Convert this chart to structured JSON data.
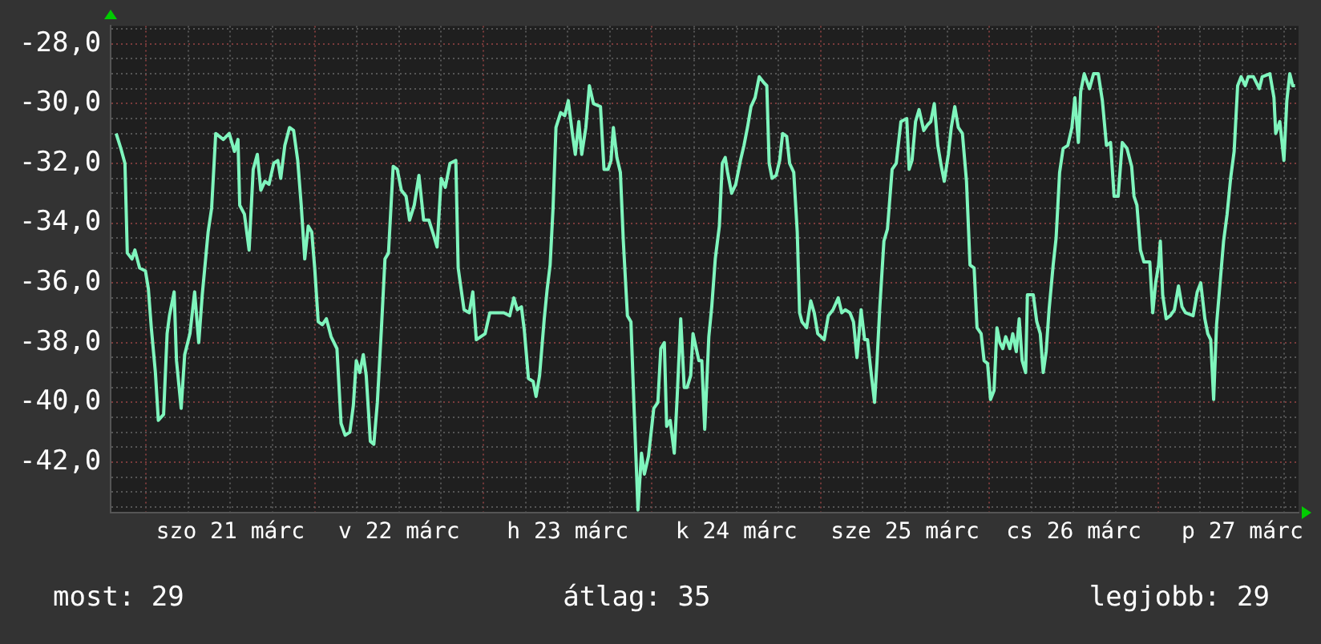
{
  "chart_data": {
    "type": "line",
    "grid": true,
    "x": [
      "--03-20T19:45",
      "--03-20T20:25",
      "--03-20T21:00",
      "--03-20T21:20",
      "--03-20T22:00",
      "--03-20T22:25",
      "--03-20T23:05",
      "--03-20T23:55",
      "--03-21T00:20",
      "--03-21T00:45",
      "--03-21T01:20",
      "--03-21T01:45",
      "--03-21T02:30",
      "--03-21T03:00",
      "--03-21T03:20",
      "--03-21T04:00",
      "--03-21T04:20",
      "--03-21T05:00",
      "--03-21T05:30",
      "--03-21T06:15",
      "--03-21T06:55",
      "--03-21T07:30",
      "--03-21T08:00",
      "--03-21T08:50",
      "--03-21T09:20",
      "--03-21T09:55",
      "--03-21T11:00",
      "--03-21T11:50",
      "--03-21T12:35",
      "--03-21T13:05",
      "--03-21T13:20",
      "--03-21T14:00",
      "--03-21T14:40",
      "--03-21T15:15",
      "--03-21T15:50",
      "--03-21T16:20",
      "--03-21T16:55",
      "--03-21T17:30",
      "--03-21T18:10",
      "--03-21T18:45",
      "--03-21T19:10",
      "--03-21T19:45",
      "--03-21T20:25",
      "--03-21T21:00",
      "--03-21T21:35",
      "--03-21T22:05",
      "--03-21T22:35",
      "--03-21T23:05",
      "--03-21T23:35",
      "--03-22T00:00",
      "--03-22T00:30",
      "--03-22T01:05",
      "--03-22T01:40",
      "--03-22T02:20",
      "--03-22T03:10",
      "--03-22T03:45",
      "--03-22T04:20",
      "--03-22T05:00",
      "--03-22T05:30",
      "--03-22T05:55",
      "--03-22T06:25",
      "--03-22T06:55",
      "--03-22T07:20",
      "--03-22T07:55",
      "--03-22T08:25",
      "--03-22T08:55",
      "--03-22T09:30",
      "--03-22T10:00",
      "--03-22T10:30",
      "--03-22T11:10",
      "--03-22T11:45",
      "--03-22T12:20",
      "--03-22T13:00",
      "--03-22T13:30",
      "--03-22T14:10",
      "--03-22T14:50",
      "--03-22T15:30",
      "--03-22T16:15",
      "--03-22T16:55",
      "--03-22T17:25",
      "--03-22T18:00",
      "--03-22T18:35",
      "--03-22T19:15",
      "--03-22T20:05",
      "--03-22T20:25",
      "--03-22T21:15",
      "--03-22T22:00",
      "--03-22T22:30",
      "--03-22T23:00",
      "--03-23T00:15",
      "--03-23T00:55",
      "--03-23T02:55",
      "--03-23T03:45",
      "--03-23T04:20",
      "--03-23T04:50",
      "--03-23T05:25",
      "--03-23T05:50",
      "--03-23T06:25",
      "--03-23T07:05",
      "--03-23T07:30",
      "--03-23T08:00",
      "--03-23T08:40",
      "--03-23T09:05",
      "--03-23T09:30",
      "--03-23T09:55",
      "--03-23T10:20",
      "--03-23T11:00",
      "--03-23T11:35",
      "--03-23T12:05",
      "--03-23T12:40",
      "--03-23T13:05",
      "--03-23T13:35",
      "--03-23T14:00",
      "--03-23T14:35",
      "--03-23T15:05",
      "--03-23T15:40",
      "--03-23T16:40",
      "--03-23T17:10",
      "--03-23T17:45",
      "--03-23T18:10",
      "--03-23T18:30",
      "--03-23T19:00",
      "--03-23T19:30",
      "--03-23T19:55",
      "--03-23T20:30",
      "--03-23T21:00",
      "--03-23T21:25",
      "--03-23T22:00",
      "--03-23T22:30",
      "--03-23T22:55",
      "--03-23T23:30",
      "--03-24T00:15",
      "--03-24T00:50",
      "--03-24T01:15",
      "--03-24T01:45",
      "--03-24T02:05",
      "--03-24T02:35",
      "--03-24T03:10",
      "--03-24T03:35",
      "--03-24T04:05",
      "--03-24T04:35",
      "--03-24T05:00",
      "--03-24T05:30",
      "--03-24T05:50",
      "--03-24T06:40",
      "--03-24T07:05",
      "--03-24T07:30",
      "--03-24T08:05",
      "--03-24T08:30",
      "--03-24T09:00",
      "--03-24T09:35",
      "--03-24T10:00",
      "--03-24T10:25",
      "--03-24T10:45",
      "--03-24T11:20",
      "--03-24T11:55",
      "--03-24T12:35",
      "--03-24T13:05",
      "--03-24T13:35",
      "--03-24T14:05",
      "--03-24T14:40",
      "--03-24T15:15",
      "--03-24T15:55",
      "--03-24T16:20",
      "--03-24T16:40",
      "--03-24T17:05",
      "--03-24T17:40",
      "--03-24T18:10",
      "--03-24T18:35",
      "--03-24T19:10",
      "--03-24T19:35",
      "--03-24T20:10",
      "--03-24T20:40",
      "--03-24T21:00",
      "--03-24T21:20",
      "--03-24T22:00",
      "--03-24T22:35",
      "--03-24T23:05",
      "--03-24T23:35",
      "--03-25T00:30",
      "--03-25T01:05",
      "--03-25T01:45",
      "--03-25T02:30",
      "--03-25T03:00",
      "--03-25T03:30",
      "--03-25T04:10",
      "--03-25T04:40",
      "--03-25T05:10",
      "--03-25T05:45",
      "--03-25T06:15",
      "--03-25T06:40",
      "--03-25T07:10",
      "--03-25T07:40",
      "--03-25T08:00",
      "--03-25T08:25",
      "--03-25T09:00",
      "--03-25T09:30",
      "--03-25T10:10",
      "--03-25T10:45",
      "--03-25T11:25",
      "--03-25T12:15",
      "--03-25T12:35",
      "--03-25T13:00",
      "--03-25T13:30",
      "--03-25T14:00",
      "--03-25T14:40",
      "--03-25T15:15",
      "--03-25T15:40",
      "--03-25T16:10",
      "--03-25T16:40",
      "--03-25T17:10",
      "--03-25T17:35",
      "--03-25T18:10",
      "--03-25T18:35",
      "--03-25T19:05",
      "--03-25T19:35",
      "--03-25T20:10",
      "--03-25T20:45",
      "--03-25T21:15",
      "--03-25T21:50",
      "--03-25T22:15",
      "--03-25T22:50",
      "--03-25T23:15",
      "--03-25T23:45",
      "--03-26T00:10",
      "--03-26T00:40",
      "--03-26T01:05",
      "--03-26T01:30",
      "--03-26T01:55",
      "--03-26T02:20",
      "--03-26T02:55",
      "--03-26T03:20",
      "--03-26T03:50",
      "--03-26T04:15",
      "--03-26T04:40",
      "--03-26T05:10",
      "--03-26T05:25",
      "--03-26T06:15",
      "--03-26T06:45",
      "--03-26T07:15",
      "--03-26T07:40",
      "--03-26T08:05",
      "--03-26T08:30",
      "--03-26T09:05",
      "--03-26T09:30",
      "--03-26T10:00",
      "--03-26T10:30",
      "--03-26T11:10",
      "--03-26T11:45",
      "--03-26T12:10",
      "--03-26T12:40",
      "--03-26T13:00",
      "--03-26T13:30",
      "--03-26T14:15",
      "--03-26T14:50",
      "--03-26T15:30",
      "--03-26T16:05",
      "--03-26T16:40",
      "--03-26T17:15",
      "--03-26T17:45",
      "--03-26T18:20",
      "--03-26T18:55",
      "--03-26T19:35",
      "--03-26T20:15",
      "--03-26T20:35",
      "--03-26T21:00",
      "--03-26T21:30",
      "--03-26T22:00",
      "--03-26T22:50",
      "--03-26T23:15",
      "--03-26T23:40",
      "--03-27T00:05",
      "--03-27T00:20",
      "--03-27T00:40",
      "--03-27T01:10",
      "--03-27T01:45",
      "--03-27T02:20",
      "--03-27T02:55",
      "--03-27T03:25",
      "--03-27T03:55",
      "--03-27T05:00",
      "--03-27T05:35",
      "--03-27T06:05",
      "--03-27T06:40",
      "--03-27T07:05",
      "--03-27T07:30",
      "--03-27T07:55",
      "--03-27T08:20",
      "--03-27T08:50",
      "--03-27T09:20",
      "--03-27T09:50",
      "--03-27T10:20",
      "--03-27T10:50",
      "--03-27T11:20",
      "--03-27T11:50",
      "--03-27T12:25",
      "--03-27T12:50",
      "--03-27T13:35",
      "--03-27T14:25",
      "--03-27T14:50",
      "--03-27T15:55",
      "--03-27T16:30",
      "--03-27T16:45",
      "--03-27T17:20",
      "--03-27T17:55",
      "--03-27T18:20",
      "--03-27T18:45",
      "--03-27T19:10",
      "--03-27T19:30"
    ],
    "series": [
      {
        "color": "#7ff5bd",
        "values": [
          -31.0,
          -31.5,
          -32.0,
          -35.0,
          -35.2,
          -34.9,
          -35.5,
          -35.6,
          -36.2,
          -37.5,
          -39.0,
          -40.6,
          -40.4,
          -37.7,
          -37.1,
          -36.3,
          -38.6,
          -40.2,
          -38.4,
          -37.7,
          -36.3,
          -38.0,
          -36.4,
          -34.3,
          -33.5,
          -31.0,
          -31.2,
          -31.0,
          -31.6,
          -31.2,
          -33.4,
          -33.7,
          -34.9,
          -32.2,
          -31.7,
          -32.9,
          -32.6,
          -32.7,
          -32.0,
          -31.9,
          -32.5,
          -31.4,
          -30.8,
          -30.9,
          -31.9,
          -33.4,
          -35.2,
          -34.1,
          -34.3,
          -35.5,
          -37.3,
          -37.4,
          -37.2,
          -37.8,
          -38.2,
          -40.7,
          -41.1,
          -41.0,
          -40.1,
          -38.6,
          -39.0,
          -38.4,
          -39.1,
          -41.3,
          -41.4,
          -40.0,
          -37.5,
          -35.2,
          -35.0,
          -32.1,
          -32.2,
          -32.9,
          -33.1,
          -33.9,
          -33.4,
          -32.4,
          -33.9,
          -33.9,
          -34.4,
          -34.8,
          -32.5,
          -32.8,
          -32.0,
          -31.9,
          -35.5,
          -36.9,
          -37.0,
          -36.3,
          -37.9,
          -37.7,
          -37.0,
          -37.0,
          -37.1,
          -36.5,
          -36.9,
          -36.8,
          -37.6,
          -39.2,
          -39.3,
          -39.8,
          -39.1,
          -37.2,
          -36.2,
          -35.4,
          -33.5,
          -30.8,
          -30.3,
          -30.4,
          -29.9,
          -31.0,
          -31.7,
          -30.6,
          -31.7,
          -30.8,
          -29.4,
          -30.0,
          -30.1,
          -32.2,
          -32.2,
          -31.9,
          -30.8,
          -31.8,
          -32.3,
          -34.6,
          -37.1,
          -37.3,
          -40.0,
          -43.6,
          -41.7,
          -42.4,
          -41.8,
          -40.2,
          -40.0,
          -38.2,
          -38.0,
          -40.8,
          -40.6,
          -41.7,
          -39.8,
          -37.2,
          -39.5,
          -39.5,
          -39.1,
          -37.7,
          -38.6,
          -38.6,
          -40.9,
          -37.8,
          -36.8,
          -35.2,
          -34.1,
          -32.0,
          -31.8,
          -32.3,
          -33.0,
          -32.7,
          -31.9,
          -31.4,
          -30.8,
          -30.1,
          -29.8,
          -29.1,
          -29.3,
          -29.4,
          -32.0,
          -32.5,
          -32.4,
          -31.9,
          -31.0,
          -31.1,
          -32.0,
          -32.3,
          -34.3,
          -37.0,
          -37.3,
          -37.5,
          -36.6,
          -37.0,
          -37.7,
          -37.9,
          -37.1,
          -36.9,
          -36.5,
          -37.0,
          -36.9,
          -37.0,
          -37.3,
          -38.5,
          -36.9,
          -37.9,
          -37.9,
          -39.0,
          -40.0,
          -38.7,
          -36.8,
          -34.6,
          -34.2,
          -32.2,
          -32.0,
          -30.6,
          -30.5,
          -32.2,
          -31.9,
          -30.6,
          -30.2,
          -30.9,
          -30.7,
          -30.6,
          -30.0,
          -31.4,
          -32.1,
          -32.6,
          -31.7,
          -30.8,
          -30.1,
          -30.8,
          -31.0,
          -32.6,
          -35.4,
          -35.5,
          -37.5,
          -37.7,
          -38.6,
          -38.7,
          -39.9,
          -39.6,
          -37.5,
          -38.0,
          -38.2,
          -37.8,
          -38.2,
          -37.7,
          -38.3,
          -37.2,
          -38.6,
          -39.0,
          -36.4,
          -36.4,
          -37.3,
          -37.7,
          -39.0,
          -38.3,
          -36.9,
          -35.4,
          -34.5,
          -32.3,
          -31.5,
          -31.4,
          -30.8,
          -29.8,
          -31.3,
          -29.6,
          -29.0,
          -29.5,
          -29.0,
          -29.0,
          -29.9,
          -31.4,
          -31.3,
          -33.1,
          -33.1,
          -31.3,
          -31.5,
          -32.1,
          -33.1,
          -33.4,
          -34.9,
          -35.3,
          -35.3,
          -37.0,
          -36.0,
          -35.4,
          -34.6,
          -36.4,
          -37.2,
          -37.1,
          -36.9,
          -36.1,
          -36.8,
          -37.0,
          -37.1,
          -36.3,
          -36.0,
          -37.2,
          -37.7,
          -37.9,
          -39.9,
          -37.4,
          -36.0,
          -34.6,
          -33.7,
          -32.5,
          -31.6,
          -29.4,
          -29.1,
          -29.4,
          -29.1,
          -29.1,
          -29.5,
          -29.1,
          -29.0,
          -29.8,
          -31.0,
          -30.6,
          -31.9,
          -29.9,
          -29.0,
          -29.4,
          -29.4
        ]
      }
    ],
    "xlim": [
      "--03-20T19:00",
      "--03-27T20:00"
    ],
    "xticks": [
      {
        "value": "--03-21T00:00",
        "label": null
      },
      {
        "value": "--03-21T06:00",
        "label": null
      },
      {
        "value": "--03-21T12:00",
        "label": "szo 21 márc"
      },
      {
        "value": "--03-21T18:00",
        "label": null
      },
      {
        "value": "--03-22T00:00",
        "label": null
      },
      {
        "value": "--03-22T06:00",
        "label": null
      },
      {
        "value": "--03-22T12:00",
        "label": "v 22 márc"
      },
      {
        "value": "--03-22T18:00",
        "label": null
      },
      {
        "value": "--03-23T00:00",
        "label": null
      },
      {
        "value": "--03-23T06:00",
        "label": null
      },
      {
        "value": "--03-23T12:00",
        "label": "h 23 márc"
      },
      {
        "value": "--03-23T18:00",
        "label": null
      },
      {
        "value": "--03-24T00:00",
        "label": null
      },
      {
        "value": "--03-24T06:00",
        "label": null
      },
      {
        "value": "--03-24T12:00",
        "label": "k 24 márc"
      },
      {
        "value": "--03-24T18:00",
        "label": null
      },
      {
        "value": "--03-25T00:00",
        "label": null
      },
      {
        "value": "--03-25T06:00",
        "label": null
      },
      {
        "value": "--03-25T12:00",
        "label": "sze 25 márc"
      },
      {
        "value": "--03-25T18:00",
        "label": null
      },
      {
        "value": "--03-26T00:00",
        "label": null
      },
      {
        "value": "--03-26T06:00",
        "label": null
      },
      {
        "value": "--03-26T12:00",
        "label": "cs 26 márc"
      },
      {
        "value": "--03-26T18:00",
        "label": null
      },
      {
        "value": "--03-27T00:00",
        "label": null
      },
      {
        "value": "--03-27T06:00",
        "label": null
      },
      {
        "value": "--03-27T12:00",
        "label": "p 27 márc"
      },
      {
        "value": "--03-27T18:00",
        "label": null
      }
    ],
    "ylim": [
      -43.7,
      -27.4
    ],
    "yticks": [
      {
        "value": -27.5,
        "label": null
      },
      {
        "value": -28,
        "label": "-28,0"
      },
      {
        "value": -28.5,
        "label": null
      },
      {
        "value": -29,
        "label": null
      },
      {
        "value": -29.5,
        "label": null
      },
      {
        "value": -30,
        "label": "-30,0"
      },
      {
        "value": -30.5,
        "label": null
      },
      {
        "value": -31,
        "label": null
      },
      {
        "value": -31.5,
        "label": null
      },
      {
        "value": -32,
        "label": "-32,0"
      },
      {
        "value": -32.5,
        "label": null
      },
      {
        "value": -33,
        "label": null
      },
      {
        "value": -33.5,
        "label": null
      },
      {
        "value": -34,
        "label": "-34,0"
      },
      {
        "value": -34.5,
        "label": null
      },
      {
        "value": -35,
        "label": null
      },
      {
        "value": -35.5,
        "label": null
      },
      {
        "value": -36,
        "label": "-36,0"
      },
      {
        "value": -36.5,
        "label": null
      },
      {
        "value": -37,
        "label": null
      },
      {
        "value": -37.5,
        "label": null
      },
      {
        "value": -38,
        "label": "-38,0"
      },
      {
        "value": -38.5,
        "label": null
      },
      {
        "value": -39,
        "label": null
      },
      {
        "value": -39.5,
        "label": null
      },
      {
        "value": -40,
        "label": "-40,0"
      },
      {
        "value": -40.5,
        "label": null
      },
      {
        "value": -41,
        "label": null
      },
      {
        "value": -41.5,
        "label": null
      },
      {
        "value": -42,
        "label": "-42,0"
      },
      {
        "value": -42.5,
        "label": null
      },
      {
        "value": -43,
        "label": null
      },
      {
        "value": -43.5,
        "label": null
      }
    ],
    "annotations": [
      "most: 29",
      "átlag: 35",
      "legjobb: 29"
    ]
  }
}
